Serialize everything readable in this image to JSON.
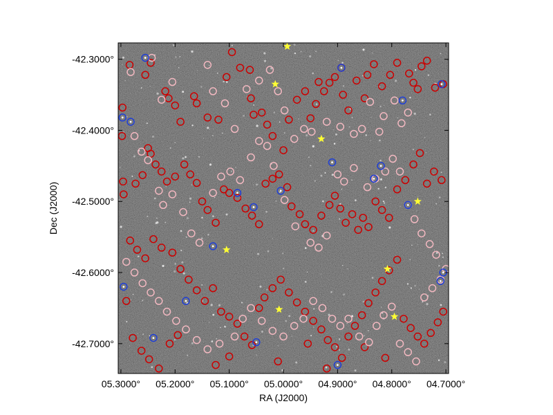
{
  "chart_data": {
    "type": "scatter",
    "title": "",
    "xlabel": "RA (J2000)",
    "ylabel": "Dec (J2000)",
    "xlim": [
      5.305,
      4.695
    ],
    "ylim": [
      -42.742,
      -42.277
    ],
    "x_ticks": [
      {
        "value": 5.3,
        "label": "05.3000°"
      },
      {
        "value": 5.2,
        "label": "05.2000°"
      },
      {
        "value": 5.1,
        "label": "05.1000°"
      },
      {
        "value": 5.0,
        "label": "05.0000°"
      },
      {
        "value": 4.9,
        "label": "04.9000°"
      },
      {
        "value": 4.8,
        "label": "04.8000°"
      },
      {
        "value": 4.7,
        "label": "04.7000°"
      }
    ],
    "y_ticks": [
      {
        "value": -42.3,
        "label": "-42.3000°"
      },
      {
        "value": -42.4,
        "label": "-42.4000°"
      },
      {
        "value": -42.5,
        "label": "-42.5000°"
      },
      {
        "value": -42.6,
        "label": "-42.6000°"
      },
      {
        "value": -42.7,
        "label": "-42.7000°"
      }
    ],
    "grid": false,
    "background": "star field image (dark grey noise)",
    "series": [
      {
        "marker": "ring",
        "color": "#cc0000",
        "points": [
          [
            5.284,
            -42.308
          ],
          [
            5.255,
            -42.322
          ],
          [
            5.245,
            -42.305
          ],
          [
            5.218,
            -42.345
          ],
          [
            5.212,
            -42.355
          ],
          [
            5.2,
            -42.365
          ],
          [
            5.19,
            -42.388
          ],
          [
            5.165,
            -42.352
          ],
          [
            5.16,
            -42.362
          ],
          [
            5.14,
            -42.382
          ],
          [
            5.12,
            -42.385
          ],
          [
            5.105,
            -42.325
          ],
          [
            5.095,
            -42.29
          ],
          [
            5.08,
            -42.312
          ],
          [
            5.062,
            -42.315
          ],
          [
            5.06,
            -42.355
          ],
          [
            5.055,
            -42.378
          ],
          [
            5.04,
            -42.375
          ],
          [
            5.03,
            -42.392
          ],
          [
            5.02,
            -42.408
          ],
          [
            5.0,
            -42.428
          ],
          [
            4.99,
            -42.385
          ],
          [
            4.975,
            -42.357
          ],
          [
            4.96,
            -42.345
          ],
          [
            4.95,
            -42.383
          ],
          [
            4.94,
            -42.363
          ],
          [
            4.935,
            -42.332
          ],
          [
            4.925,
            -42.345
          ],
          [
            4.915,
            -42.333
          ],
          [
            4.905,
            -42.325
          ],
          [
            4.893,
            -42.312
          ],
          [
            4.89,
            -42.35
          ],
          [
            4.88,
            -42.372
          ],
          [
            4.865,
            -42.33
          ],
          [
            4.85,
            -42.355
          ],
          [
            4.845,
            -42.322
          ],
          [
            4.833,
            -42.307
          ],
          [
            4.818,
            -42.338
          ],
          [
            4.803,
            -42.322
          ],
          [
            4.79,
            -42.305
          ],
          [
            4.768,
            -42.32
          ],
          [
            4.76,
            -42.333
          ],
          [
            4.752,
            -42.342
          ],
          [
            4.745,
            -42.31
          ],
          [
            4.735,
            -42.302
          ],
          [
            4.72,
            -42.34
          ],
          [
            4.705,
            -42.335
          ],
          [
            5.297,
            -42.368
          ],
          [
            5.298,
            -42.408
          ],
          [
            5.296,
            -42.472
          ],
          [
            5.295,
            -42.49
          ],
          [
            5.273,
            -42.475
          ],
          [
            5.26,
            -42.463
          ],
          [
            5.25,
            -42.425
          ],
          [
            5.245,
            -42.433
          ],
          [
            5.236,
            -42.448
          ],
          [
            5.225,
            -42.458
          ],
          [
            5.215,
            -42.472
          ],
          [
            5.2,
            -42.465
          ],
          [
            5.183,
            -42.448
          ],
          [
            5.172,
            -42.462
          ],
          [
            5.16,
            -42.474
          ],
          [
            5.15,
            -42.5
          ],
          [
            5.14,
            -42.512
          ],
          [
            5.125,
            -42.53
          ],
          [
            5.11,
            -42.483
          ],
          [
            5.1,
            -42.488
          ],
          [
            5.085,
            -42.495
          ],
          [
            5.07,
            -42.51
          ],
          [
            5.058,
            -42.52
          ],
          [
            5.045,
            -42.532
          ],
          [
            5.033,
            -42.475
          ],
          [
            5.02,
            -42.468
          ],
          [
            5.008,
            -42.462
          ],
          [
            4.993,
            -42.48
          ],
          [
            4.985,
            -42.507
          ],
          [
            4.97,
            -42.518
          ],
          [
            4.96,
            -42.532
          ],
          [
            4.945,
            -42.54
          ],
          [
            4.93,
            -42.52
          ],
          [
            4.915,
            -42.505
          ],
          [
            4.905,
            -42.492
          ],
          [
            4.895,
            -42.51
          ],
          [
            4.885,
            -42.53
          ],
          [
            4.873,
            -42.518
          ],
          [
            4.862,
            -42.54
          ],
          [
            4.853,
            -42.523
          ],
          [
            4.843,
            -42.536
          ],
          [
            4.83,
            -42.5
          ],
          [
            4.818,
            -42.512
          ],
          [
            4.805,
            -42.523
          ],
          [
            4.79,
            -42.483
          ],
          [
            4.775,
            -42.47
          ],
          [
            4.76,
            -42.448
          ],
          [
            4.748,
            -42.432
          ],
          [
            4.735,
            -42.475
          ],
          [
            4.722,
            -42.458
          ],
          [
            4.708,
            -42.47
          ],
          [
            5.283,
            -42.555
          ],
          [
            5.27,
            -42.568
          ],
          [
            5.255,
            -42.58
          ],
          [
            5.24,
            -42.553
          ],
          [
            5.225,
            -42.565
          ],
          [
            5.205,
            -42.572
          ],
          [
            5.19,
            -42.595
          ],
          [
            5.175,
            -42.61
          ],
          [
            5.16,
            -42.625
          ],
          [
            5.145,
            -42.64
          ],
          [
            5.13,
            -42.622
          ],
          [
            5.115,
            -42.655
          ],
          [
            5.1,
            -42.662
          ],
          [
            5.085,
            -42.672
          ],
          [
            5.072,
            -42.69
          ],
          [
            5.058,
            -42.702
          ],
          [
            5.045,
            -42.65
          ],
          [
            5.035,
            -42.635
          ],
          [
            5.02,
            -42.622
          ],
          [
            5.005,
            -42.61
          ],
          [
            4.99,
            -42.628
          ],
          [
            4.975,
            -42.642
          ],
          [
            4.96,
            -42.655
          ],
          [
            4.945,
            -42.668
          ],
          [
            4.93,
            -42.68
          ],
          [
            4.918,
            -42.695
          ],
          [
            4.905,
            -42.705
          ],
          [
            4.892,
            -42.72
          ],
          [
            4.88,
            -42.69
          ],
          [
            4.868,
            -42.675
          ],
          [
            4.855,
            -42.66
          ],
          [
            4.843,
            -42.643
          ],
          [
            4.83,
            -42.628
          ],
          [
            4.818,
            -42.612
          ],
          [
            4.805,
            -42.597
          ],
          [
            4.79,
            -42.582
          ],
          [
            4.778,
            -42.665
          ],
          [
            4.765,
            -42.678
          ],
          [
            4.752,
            -42.69
          ],
          [
            4.74,
            -42.7
          ],
          [
            4.728,
            -42.685
          ],
          [
            4.715,
            -42.67
          ],
          [
            4.705,
            -42.655
          ],
          [
            5.29,
            -42.64
          ],
          [
            5.278,
            -42.692
          ],
          [
            5.262,
            -42.71
          ],
          [
            5.248,
            -42.722
          ],
          [
            5.23,
            -42.735
          ],
          [
            5.21,
            -42.7
          ],
          [
            5.195,
            -42.688
          ],
          [
            5.125,
            -42.73
          ],
          [
            5.1,
            -42.718
          ],
          [
            5.01,
            -42.725
          ],
          [
            4.955,
            -42.7
          ],
          [
            4.92,
            -42.735
          ],
          [
            4.85,
            -42.705
          ],
          [
            4.812,
            -42.72
          ]
        ]
      },
      {
        "marker": "ring",
        "color": "#f2b8c0",
        "points": [
          [
            5.282,
            -42.318
          ],
          [
            5.243,
            -42.298
          ],
          [
            5.225,
            -42.357
          ],
          [
            5.205,
            -42.332
          ],
          [
            5.14,
            -42.308
          ],
          [
            5.13,
            -42.345
          ],
          [
            5.108,
            -42.362
          ],
          [
            5.09,
            -42.398
          ],
          [
            5.068,
            -42.342
          ],
          [
            5.045,
            -42.33
          ],
          [
            5.025,
            -42.315
          ],
          [
            5.01,
            -42.345
          ],
          [
            4.998,
            -42.372
          ],
          [
            4.98,
            -42.412
          ],
          [
            4.962,
            -42.398
          ],
          [
            4.948,
            -42.402
          ],
          [
            4.92,
            -42.388
          ],
          [
            4.895,
            -42.395
          ],
          [
            4.87,
            -42.405
          ],
          [
            4.855,
            -42.398
          ],
          [
            4.84,
            -42.36
          ],
          [
            4.823,
            -42.402
          ],
          [
            4.815,
            -42.38
          ],
          [
            4.795,
            -42.358
          ],
          [
            4.782,
            -42.39
          ],
          [
            4.77,
            -42.375
          ],
          [
            5.275,
            -42.408
          ],
          [
            5.262,
            -42.43
          ],
          [
            5.25,
            -42.442
          ],
          [
            5.23,
            -42.485
          ],
          [
            5.222,
            -42.505
          ],
          [
            5.205,
            -42.49
          ],
          [
            5.185,
            -42.515
          ],
          [
            5.17,
            -42.545
          ],
          [
            5.155,
            -42.558
          ],
          [
            5.13,
            -42.488
          ],
          [
            5.115,
            -42.465
          ],
          [
            5.098,
            -42.458
          ],
          [
            5.08,
            -42.47
          ],
          [
            5.06,
            -42.438
          ],
          [
            5.045,
            -42.415
          ],
          [
            5.03,
            -42.422
          ],
          [
            5.018,
            -42.45
          ],
          [
            4.998,
            -42.498
          ],
          [
            4.978,
            -42.535
          ],
          [
            4.95,
            -42.558
          ],
          [
            4.935,
            -42.565
          ],
          [
            4.92,
            -42.548
          ],
          [
            4.9,
            -42.462
          ],
          [
            4.888,
            -42.472
          ],
          [
            4.87,
            -42.453
          ],
          [
            4.845,
            -42.48
          ],
          [
            4.83,
            -42.468
          ],
          [
            4.812,
            -42.458
          ],
          [
            4.798,
            -42.44
          ],
          [
            4.785,
            -42.458
          ],
          [
            4.77,
            -42.505
          ],
          [
            4.758,
            -42.525
          ],
          [
            4.745,
            -42.545
          ],
          [
            4.73,
            -42.56
          ],
          [
            4.718,
            -42.575
          ],
          [
            5.29,
            -42.585
          ],
          [
            5.275,
            -42.6
          ],
          [
            5.26,
            -42.615
          ],
          [
            5.245,
            -42.628
          ],
          [
            5.23,
            -42.64
          ],
          [
            5.215,
            -42.655
          ],
          [
            5.198,
            -42.668
          ],
          [
            5.18,
            -42.68
          ],
          [
            5.16,
            -42.695
          ],
          [
            5.14,
            -42.708
          ],
          [
            5.118,
            -42.7
          ],
          [
            5.09,
            -42.69
          ],
          [
            5.075,
            -42.665
          ],
          [
            5.06,
            -42.65
          ],
          [
            5.04,
            -42.668
          ],
          [
            5.02,
            -42.682
          ],
          [
            5.0,
            -42.69
          ],
          [
            4.98,
            -42.675
          ],
          [
            4.963,
            -42.665
          ],
          [
            4.945,
            -42.64
          ],
          [
            4.928,
            -42.65
          ],
          [
            4.91,
            -42.665
          ],
          [
            4.895,
            -42.675
          ],
          [
            4.88,
            -42.665
          ],
          [
            4.86,
            -42.69
          ],
          [
            4.842,
            -42.698
          ],
          [
            4.828,
            -42.675
          ],
          [
            4.815,
            -42.66
          ],
          [
            4.8,
            -42.648
          ],
          [
            4.785,
            -42.7
          ],
          [
            4.77,
            -42.712
          ],
          [
            4.755,
            -42.725
          ],
          [
            4.74,
            -42.635
          ],
          [
            4.725,
            -42.622
          ],
          [
            4.71,
            -42.61
          ],
          [
            4.7,
            -42.595
          ]
        ]
      },
      {
        "marker": "ring",
        "color": "#1f3fd6",
        "points": [
          [
            5.255,
            -42.298
          ],
          [
            5.297,
            -42.382
          ],
          [
            5.282,
            -42.388
          ],
          [
            4.893,
            -42.312
          ],
          [
            4.78,
            -42.358
          ],
          [
            4.708,
            -42.335
          ],
          [
            5.085,
            -42.488
          ],
          [
            5.005,
            -42.485
          ],
          [
            4.91,
            -42.445
          ],
          [
            4.82,
            -42.45
          ],
          [
            4.833,
            -42.468
          ],
          [
            4.77,
            -42.505
          ],
          [
            5.13,
            -42.563
          ],
          [
            5.055,
            -42.508
          ],
          [
            4.705,
            -42.6
          ],
          [
            4.71,
            -42.612
          ],
          [
            5.295,
            -42.62
          ],
          [
            5.18,
            -42.64
          ],
          [
            5.24,
            -42.692
          ],
          [
            4.9,
            -42.73
          ],
          [
            5.05,
            -42.698
          ]
        ]
      },
      {
        "marker": "star",
        "color": "#ffff33",
        "points": [
          [
            4.993,
            -42.282
          ],
          [
            5.015,
            -42.335
          ],
          [
            4.93,
            -42.412
          ],
          [
            4.752,
            -42.5
          ],
          [
            5.105,
            -42.568
          ],
          [
            4.808,
            -42.595
          ],
          [
            5.008,
            -42.652
          ],
          [
            4.795,
            -42.662
          ]
        ]
      }
    ]
  }
}
